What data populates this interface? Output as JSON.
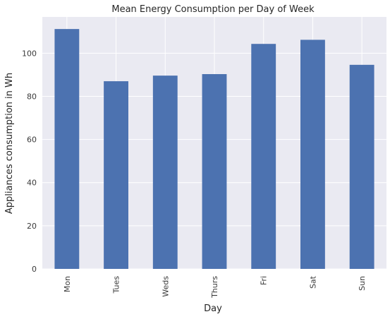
{
  "chart_data": {
    "type": "bar",
    "title": "Mean Energy Consumption per Day of Week",
    "xlabel": "Day",
    "ylabel": "Appliances consumption in Wh",
    "categories": [
      "Mon",
      "Tues",
      "Weds",
      "Thurs",
      "Fri",
      "Sat",
      "Sun"
    ],
    "values": [
      111.2,
      87.0,
      89.6,
      90.3,
      104.3,
      106.2,
      94.6
    ],
    "ylim": [
      0,
      116.8
    ],
    "yticks": [
      0,
      20,
      40,
      60,
      80,
      100
    ],
    "grid": true,
    "legend": "none",
    "bar_color": "#4c72b0",
    "background_color": "#eaeaf2",
    "grid_color": "#ffffff"
  }
}
